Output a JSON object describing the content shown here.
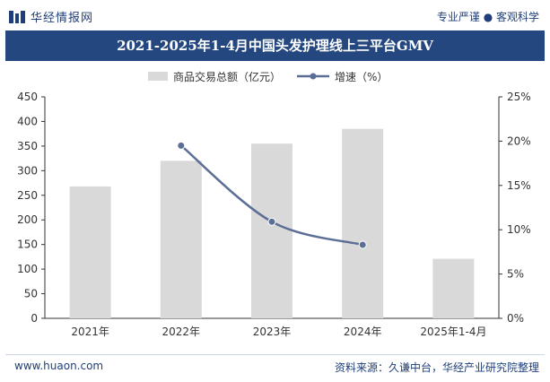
{
  "header": {
    "brand": "华经情报网",
    "tagline": "专业严谨 ● 客观科学"
  },
  "footer": {
    "url": "www.huaon.com",
    "source": "资料来源：久谦中台，华经产业研究院整理"
  },
  "colors": {
    "bar": "#d9d9d9",
    "line": "#5b6e95",
    "title_bg": "#23477e",
    "brand": "#1f3f7a"
  },
  "chart_data": {
    "type": "bar",
    "title": "2021-2025年1-4月中国头发护理线上三平台GMV",
    "categories": [
      "2021年",
      "2022年",
      "2023年",
      "2024年",
      "2025年1-4月"
    ],
    "series": [
      {
        "name": "商品交易总额（亿元）",
        "type": "bar",
        "axis": "left",
        "values": [
          268,
          320,
          355,
          385,
          121
        ]
      },
      {
        "name": "增速（%）",
        "type": "line",
        "axis": "right",
        "values": [
          null,
          19.5,
          10.9,
          8.3,
          null
        ]
      }
    ],
    "y_left": {
      "ylim": [
        0,
        450
      ],
      "ticks": [
        "0",
        "50",
        "100",
        "150",
        "200",
        "250",
        "300",
        "350",
        "400",
        "450"
      ]
    },
    "y_right": {
      "ylim": [
        0,
        25
      ],
      "ticks": [
        "0%",
        "5%",
        "10%",
        "15%",
        "20%",
        "25%"
      ]
    },
    "legend_position": "top-center",
    "grid": false
  }
}
